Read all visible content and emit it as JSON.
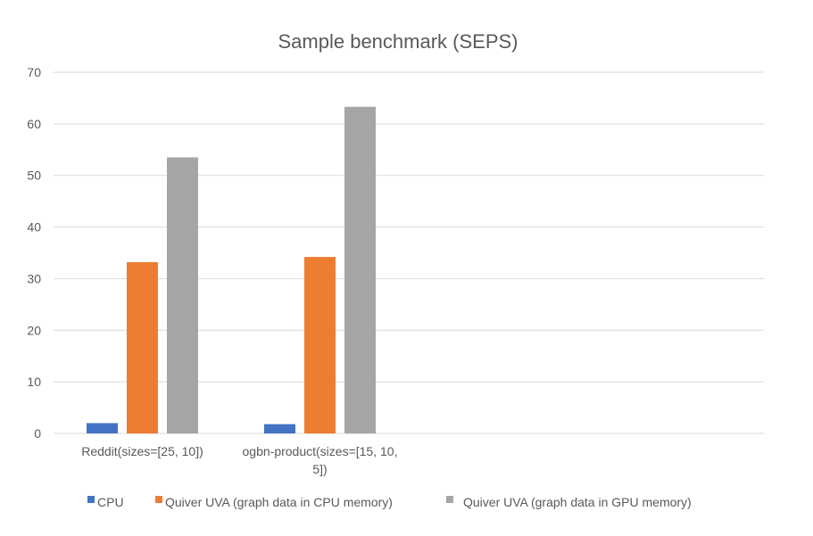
{
  "chart_data": {
    "type": "bar",
    "title": "Sample benchmark (SEPS)",
    "xlabel": "",
    "ylabel": "",
    "ylim": [
      0,
      70
    ],
    "yticks": [
      0,
      10,
      20,
      30,
      40,
      50,
      60,
      70
    ],
    "grid": true,
    "legend_position": "bottom",
    "categories": [
      [
        "Reddit(sizes=[25, 10])"
      ],
      [
        "ogbn-product(sizes=[15, 10,",
        "5])"
      ]
    ],
    "category_count_slots": 4,
    "series": [
      {
        "name": "CPU",
        "color": "#4472c4",
        "values": [
          2.0,
          1.8
        ]
      },
      {
        "name": "Quiver UVA (graph data in CPU memory)",
        "color": "#ed7d31",
        "values": [
          33.2,
          34.2
        ]
      },
      {
        "name": "Quiver UVA (graph data in GPU memory)",
        "color": "#a5a5a5",
        "values": [
          53.5,
          63.3
        ]
      }
    ]
  }
}
